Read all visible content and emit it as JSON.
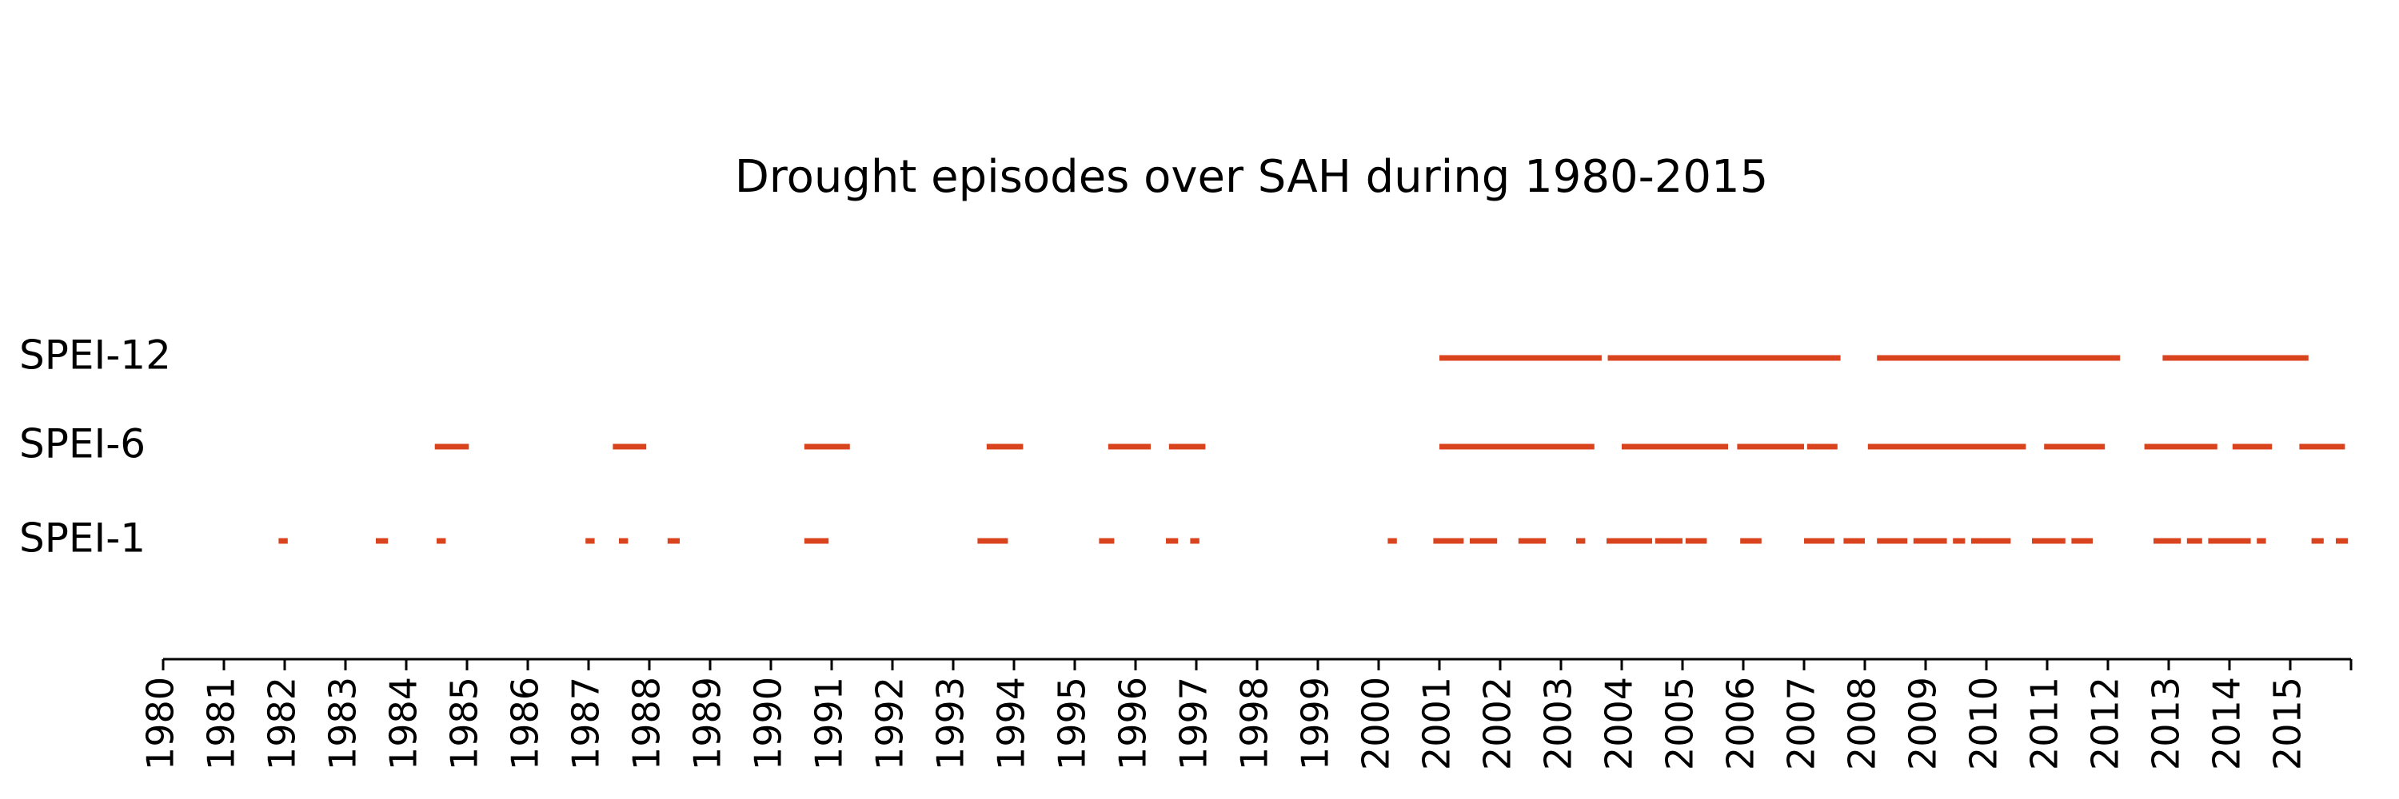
{
  "chart_data": {
    "type": "timeline",
    "title": "Drought episodes over SAH during 1980-2015",
    "xlim": [
      1980,
      2016
    ],
    "xticks": [
      1980,
      1981,
      1982,
      1983,
      1984,
      1985,
      1986,
      1987,
      1988,
      1989,
      1990,
      1991,
      1992,
      1993,
      1994,
      1995,
      1996,
      1997,
      1998,
      1999,
      2000,
      2001,
      2002,
      2003,
      2004,
      2005,
      2006,
      2007,
      2008,
      2009,
      2010,
      2011,
      2012,
      2013,
      2014,
      2015
    ],
    "series": [
      {
        "name": "SPEI-12",
        "color": "#d9441f",
        "values": [
          [
            2001.0,
            2003.67
          ],
          [
            2003.77,
            2007.6
          ],
          [
            2008.2,
            2012.2
          ],
          [
            2012.9,
            2015.3
          ]
        ]
      },
      {
        "name": "SPEI-6",
        "color": "#d9441f",
        "values": [
          [
            1984.47,
            1985.03
          ],
          [
            1987.4,
            1987.95
          ],
          [
            1990.55,
            1991.3
          ],
          [
            1993.55,
            1994.15
          ],
          [
            1995.55,
            1996.25
          ],
          [
            1996.55,
            1997.15
          ],
          [
            2001.0,
            2003.55
          ],
          [
            2004.0,
            2005.75
          ],
          [
            2005.9,
            2007.0
          ],
          [
            2007.05,
            2007.55
          ],
          [
            2008.05,
            2010.65
          ],
          [
            2010.95,
            2011.95
          ],
          [
            2012.6,
            2013.8
          ],
          [
            2014.05,
            2014.7
          ],
          [
            2015.15,
            2015.9
          ]
        ]
      },
      {
        "name": "SPEI-1",
        "color": "#d9441f",
        "values": [
          [
            1981.9,
            1982.05
          ],
          [
            1983.5,
            1983.7
          ],
          [
            1984.5,
            1984.65
          ],
          [
            1986.95,
            1987.1
          ],
          [
            1987.5,
            1987.65
          ],
          [
            1988.3,
            1988.5
          ],
          [
            1990.55,
            1990.95
          ],
          [
            1993.4,
            1993.9
          ],
          [
            1995.4,
            1995.65
          ],
          [
            1996.5,
            1996.7
          ],
          [
            1996.9,
            1997.05
          ],
          [
            2000.15,
            2000.3
          ],
          [
            2000.9,
            2001.4
          ],
          [
            2001.5,
            2001.95
          ],
          [
            2002.3,
            2002.75
          ],
          [
            2003.25,
            2003.4
          ],
          [
            2003.75,
            2004.5
          ],
          [
            2004.55,
            2005.0
          ],
          [
            2005.05,
            2005.4
          ],
          [
            2005.95,
            2006.3
          ],
          [
            2007.0,
            2007.5
          ],
          [
            2007.65,
            2008.0
          ],
          [
            2008.2,
            2008.7
          ],
          [
            2008.8,
            2009.35
          ],
          [
            2009.45,
            2009.65
          ],
          [
            2009.75,
            2010.4
          ],
          [
            2010.75,
            2011.3
          ],
          [
            2011.4,
            2011.75
          ],
          [
            2012.75,
            2013.2
          ],
          [
            2013.3,
            2013.55
          ],
          [
            2013.65,
            2014.35
          ],
          [
            2014.45,
            2014.6
          ],
          [
            2015.35,
            2015.55
          ],
          [
            2015.75,
            2015.95
          ]
        ]
      }
    ]
  }
}
